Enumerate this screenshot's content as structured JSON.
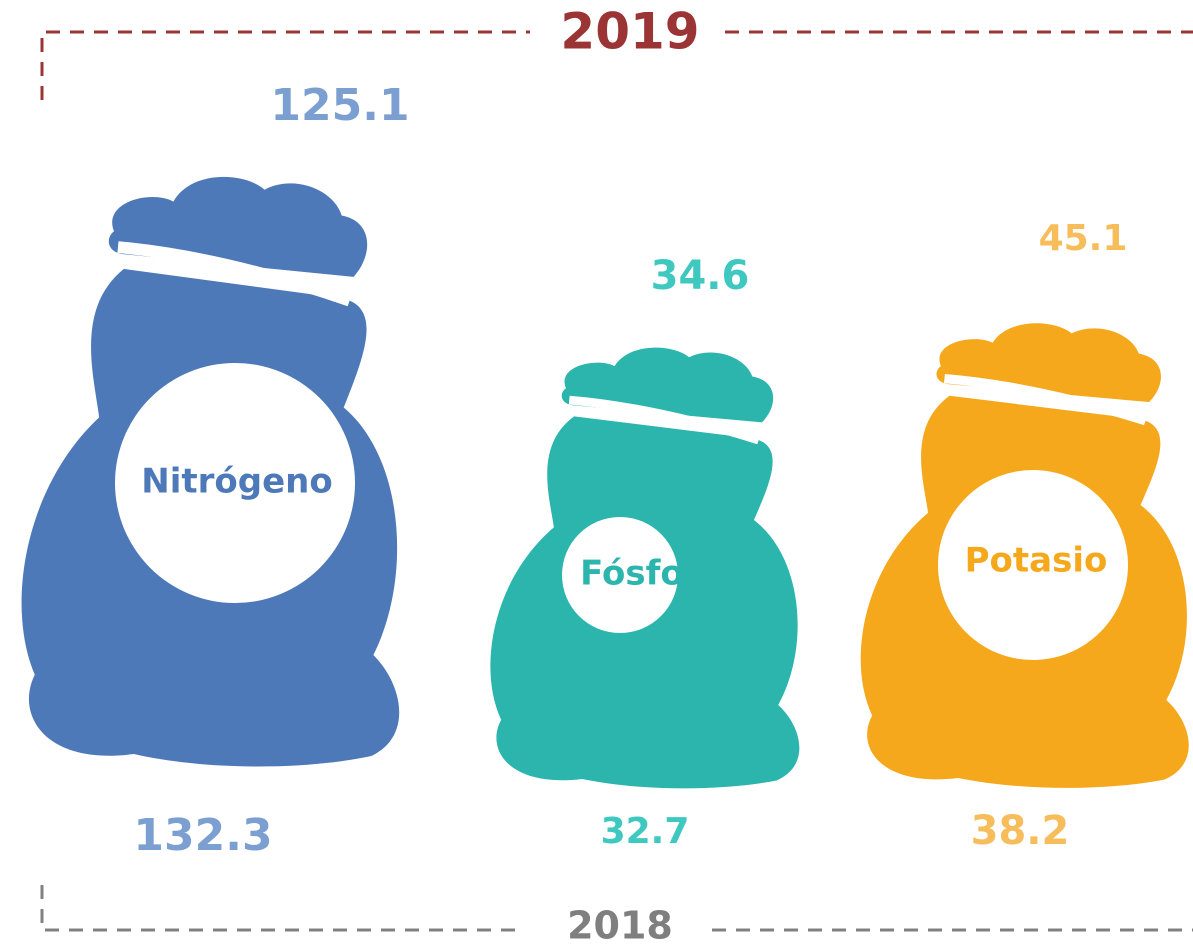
{
  "header": {
    "year_top": "2019",
    "year_bottom": "2018"
  },
  "items": [
    {
      "label": "Nitrógeno",
      "value_2019": 125.1,
      "value_2018": 132.3
    },
    {
      "label": "Fósforo",
      "value_2019": 34.6,
      "value_2018": 32.7
    },
    {
      "label": "Potasio",
      "value_2019": 45.1,
      "value_2018": 38.2
    }
  ]
}
